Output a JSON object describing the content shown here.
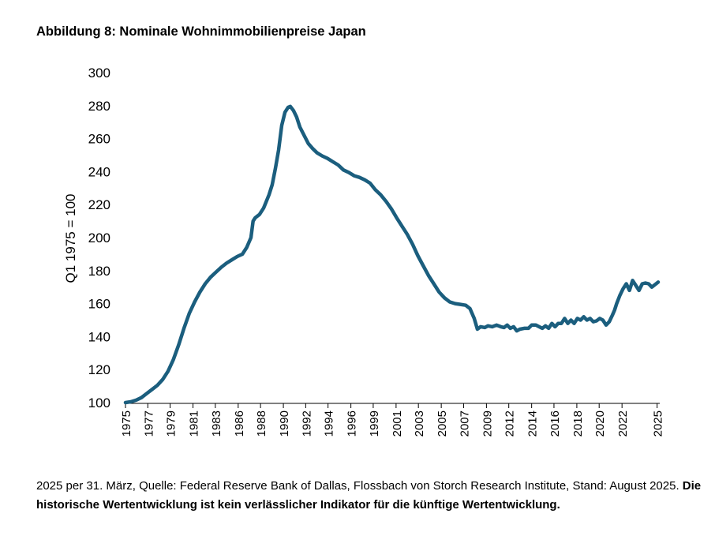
{
  "title": "Abbildung 8: Nominale Wohnimmobilienpreise Japan",
  "footnote": {
    "text": "2025 per 31. März, Quelle: Federal Reserve Bank of Dallas, Flossbach von Storch Research Institute, Stand: August 2025. ",
    "bold_text": "Die historische Wertentwicklung ist kein verlässlicher Indikator für die künftige Wertentwicklung."
  },
  "colors": {
    "line": "#1b5e7e",
    "axis": "#000000"
  },
  "chart_data": {
    "type": "line",
    "title": "Abbildung 8: Nominale Wohnimmobilienpreise Japan",
    "xlabel": "",
    "ylabel": "Q1 1975 = 100",
    "ylim": [
      100,
      300
    ],
    "yticks": [
      100,
      120,
      140,
      160,
      180,
      200,
      220,
      240,
      260,
      280,
      300
    ],
    "xlim": [
      1975.0,
      2025.25
    ],
    "xticks": [
      {
        "label": "1975",
        "x": 1975.0
      },
      {
        "label": "1977",
        "x": 1977.1
      },
      {
        "label": "1979",
        "x": 1979.2
      },
      {
        "label": "1981",
        "x": 1981.35
      },
      {
        "label": "1983",
        "x": 1983.45
      },
      {
        "label": "1986",
        "x": 1985.6
      },
      {
        "label": "1988",
        "x": 1987.7
      },
      {
        "label": "1990",
        "x": 1989.85
      },
      {
        "label": "1992",
        "x": 1991.95
      },
      {
        "label": "1994",
        "x": 1994.05
      },
      {
        "label": "1996",
        "x": 1996.2
      },
      {
        "label": "1999",
        "x": 1998.3
      },
      {
        "label": "2001",
        "x": 2000.45
      },
      {
        "label": "2003",
        "x": 2002.55
      },
      {
        "label": "2005",
        "x": 2004.7
      },
      {
        "label": "2007",
        "x": 2006.8
      },
      {
        "label": "2009",
        "x": 2008.95
      },
      {
        "label": "2012",
        "x": 2011.05
      },
      {
        "label": "2014",
        "x": 2013.2
      },
      {
        "label": "2016",
        "x": 2015.3
      },
      {
        "label": "2018",
        "x": 2017.45
      },
      {
        "label": "2020",
        "x": 2019.55
      },
      {
        "label": "2022",
        "x": 2021.7
      },
      {
        "label": "2025",
        "x": 2025.0
      }
    ],
    "grid": false,
    "legend": "none",
    "series": [
      {
        "points": [
          [
            1975.0,
            100
          ],
          [
            1975.5,
            100.5
          ],
          [
            1976.0,
            101.5
          ],
          [
            1976.5,
            103
          ],
          [
            1977.0,
            105.5
          ],
          [
            1977.5,
            108
          ],
          [
            1978.0,
            110.5
          ],
          [
            1978.5,
            114
          ],
          [
            1979.0,
            119
          ],
          [
            1979.5,
            126
          ],
          [
            1980.0,
            135
          ],
          [
            1980.5,
            145
          ],
          [
            1981.0,
            154
          ],
          [
            1981.5,
            161
          ],
          [
            1982.0,
            167
          ],
          [
            1982.5,
            172
          ],
          [
            1983.0,
            176
          ],
          [
            1983.5,
            179
          ],
          [
            1984.0,
            182
          ],
          [
            1984.5,
            184.5
          ],
          [
            1985.0,
            186.5
          ],
          [
            1985.5,
            188.5
          ],
          [
            1986.0,
            190
          ],
          [
            1986.4,
            194
          ],
          [
            1986.8,
            200
          ],
          [
            1987.0,
            210
          ],
          [
            1987.2,
            212
          ],
          [
            1987.6,
            214
          ],
          [
            1988.0,
            218
          ],
          [
            1988.5,
            226
          ],
          [
            1988.8,
            232
          ],
          [
            1989.1,
            242
          ],
          [
            1989.4,
            253
          ],
          [
            1989.7,
            268
          ],
          [
            1990.0,
            276
          ],
          [
            1990.3,
            279
          ],
          [
            1990.5,
            279.5
          ],
          [
            1990.8,
            277
          ],
          [
            1991.1,
            273
          ],
          [
            1991.4,
            267
          ],
          [
            1991.8,
            262
          ],
          [
            1992.2,
            257
          ],
          [
            1992.6,
            254
          ],
          [
            1993.0,
            251.5
          ],
          [
            1993.5,
            249.5
          ],
          [
            1994.0,
            248
          ],
          [
            1994.5,
            246
          ],
          [
            1995.0,
            244
          ],
          [
            1995.5,
            241
          ],
          [
            1996.0,
            239.5
          ],
          [
            1996.5,
            237.5
          ],
          [
            1997.0,
            236.5
          ],
          [
            1997.5,
            235
          ],
          [
            1998.0,
            233
          ],
          [
            1998.5,
            229
          ],
          [
            1999.0,
            226
          ],
          [
            1999.5,
            222
          ],
          [
            2000.0,
            217.5
          ],
          [
            2000.5,
            212
          ],
          [
            2001.0,
            207
          ],
          [
            2001.5,
            202
          ],
          [
            2002.0,
            196
          ],
          [
            2002.5,
            189
          ],
          [
            2003.0,
            183
          ],
          [
            2003.5,
            177
          ],
          [
            2004.0,
            172
          ],
          [
            2004.5,
            167
          ],
          [
            2005.0,
            163.5
          ],
          [
            2005.5,
            161
          ],
          [
            2006.0,
            160
          ],
          [
            2006.5,
            159.5
          ],
          [
            2007.0,
            159
          ],
          [
            2007.4,
            157
          ],
          [
            2007.8,
            151
          ],
          [
            2008.1,
            144.5
          ],
          [
            2008.4,
            146
          ],
          [
            2008.8,
            145.5
          ],
          [
            2009.1,
            146.5
          ],
          [
            2009.5,
            146
          ],
          [
            2009.9,
            147
          ],
          [
            2010.3,
            146
          ],
          [
            2010.6,
            145.5
          ],
          [
            2010.9,
            147
          ],
          [
            2011.2,
            145
          ],
          [
            2011.5,
            146
          ],
          [
            2011.8,
            143.5
          ],
          [
            2012.1,
            144.5
          ],
          [
            2012.5,
            145
          ],
          [
            2012.9,
            145
          ],
          [
            2013.2,
            147
          ],
          [
            2013.6,
            147
          ],
          [
            2013.9,
            146
          ],
          [
            2014.2,
            145
          ],
          [
            2014.5,
            146.5
          ],
          [
            2014.8,
            145
          ],
          [
            2015.1,
            148
          ],
          [
            2015.4,
            146
          ],
          [
            2015.7,
            148
          ],
          [
            2016.0,
            148
          ],
          [
            2016.3,
            151
          ],
          [
            2016.6,
            148
          ],
          [
            2016.9,
            150
          ],
          [
            2017.2,
            148
          ],
          [
            2017.5,
            151
          ],
          [
            2017.8,
            150
          ],
          [
            2018.1,
            152
          ],
          [
            2018.4,
            150
          ],
          [
            2018.7,
            151
          ],
          [
            2019.0,
            149
          ],
          [
            2019.3,
            149.5
          ],
          [
            2019.6,
            151
          ],
          [
            2019.9,
            150
          ],
          [
            2020.2,
            147
          ],
          [
            2020.5,
            149
          ],
          [
            2020.8,
            153
          ],
          [
            2021.0,
            156
          ],
          [
            2021.2,
            160
          ],
          [
            2021.5,
            165
          ],
          [
            2021.8,
            169
          ],
          [
            2022.1,
            172
          ],
          [
            2022.4,
            168
          ],
          [
            2022.7,
            174
          ],
          [
            2023.0,
            171
          ],
          [
            2023.3,
            168
          ],
          [
            2023.6,
            172
          ],
          [
            2023.9,
            172.5
          ],
          [
            2024.2,
            172
          ],
          [
            2024.5,
            170
          ],
          [
            2024.8,
            171.5
          ],
          [
            2025.1,
            173
          ]
        ]
      }
    ]
  }
}
